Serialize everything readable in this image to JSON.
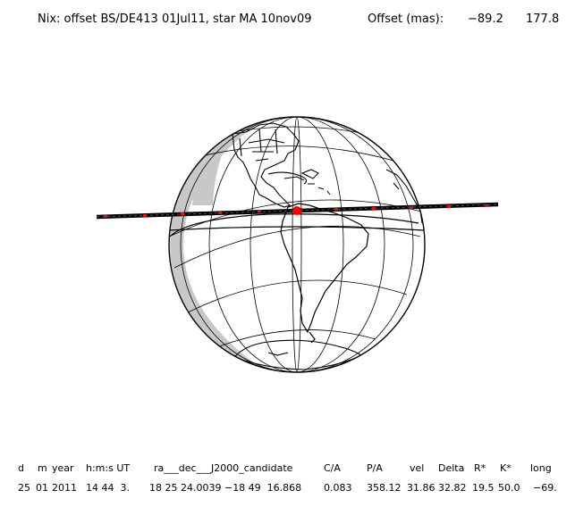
{
  "header": {
    "title": "Nix: offset BS/DE413 01Jul11, star MA 10nov09",
    "offset_label": "Offset (mas):",
    "offset_x": "−89.2",
    "offset_y": "177.8"
  },
  "map": {
    "projection": "orthographic",
    "track_color": "#000000",
    "event_marker_color": "#ff0000",
    "shadow_color": "#c8c8c8"
  },
  "table": {
    "headers": [
      "d",
      "m",
      "year",
      "h:m:s UT",
      "ra___dec___J2000_candidate",
      "C/A",
      "P/A",
      "vel",
      "Delta",
      "R*",
      "K*",
      "long"
    ],
    "values": [
      "25",
      "01",
      "2011",
      "14 44  3.",
      "18 25 24.0039 −18 49  16.868",
      "0.083",
      "358.12",
      "31.86",
      "32.82",
      "19.5",
      "50.0",
      "−69."
    ]
  }
}
